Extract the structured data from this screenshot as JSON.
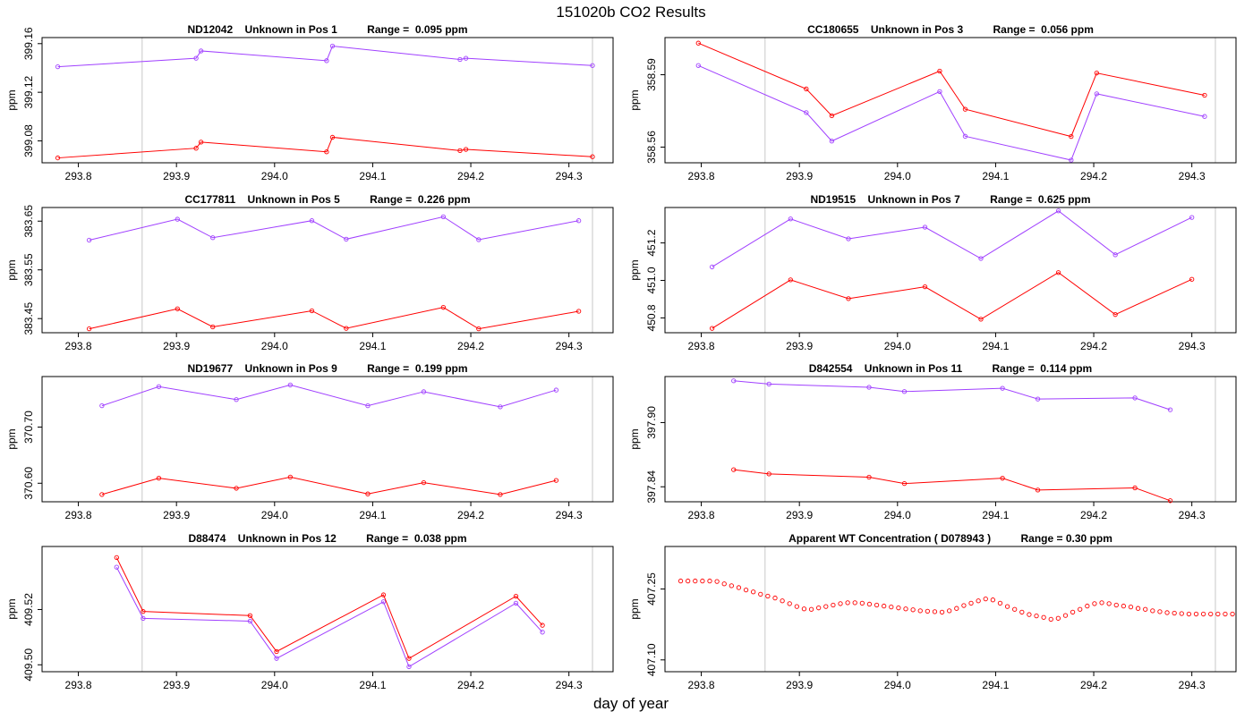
{
  "page": {
    "title": "151020b  CO2 Results",
    "xlabel": "day of year"
  },
  "colors": {
    "purple": "#a040ff",
    "red": "#ff0000",
    "vline": "#c8c8c8"
  },
  "chart_data": [
    {
      "type": "line",
      "title": "ND12042    Unknown in Pos 1          Range =  0.095 ppm",
      "ylabel": "ppm",
      "xlim": [
        293.763,
        294.345
      ],
      "ylim": [
        399.062,
        399.165
      ],
      "xticks": [
        "293.8",
        "293.9",
        "294.0",
        "294.1",
        "294.2",
        "294.3"
      ],
      "yticks": [
        "399.08",
        "399.12",
        "399.16"
      ],
      "vlines": [
        293.865,
        294.324
      ],
      "series": [
        {
          "name": "purple",
          "color": "#a040ff",
          "x": [
            293.779,
            293.92,
            293.925,
            294.053,
            294.059,
            294.189,
            294.195,
            294.324
          ],
          "y": [
            399.141,
            399.148,
            399.154,
            399.146,
            399.158,
            399.147,
            399.148,
            399.142
          ]
        },
        {
          "name": "red",
          "color": "#ff0000",
          "x": [
            293.779,
            293.92,
            293.925,
            294.053,
            294.059,
            294.189,
            294.195,
            294.324
          ],
          "y": [
            399.066,
            399.074,
            399.079,
            399.071,
            399.083,
            399.072,
            399.073,
            399.067
          ]
        }
      ]
    },
    {
      "type": "line",
      "title": "CC180655    Unknown in Pos 3          Range =  0.056 ppm",
      "ylabel": "ppm",
      "xlim": [
        293.763,
        294.345
      ],
      "ylim": [
        358.5535,
        358.6054
      ],
      "xticks": [
        "293.8",
        "293.9",
        "294.0",
        "294.1",
        "294.2",
        "294.3"
      ],
      "yticks": [
        "358.56",
        "358.59"
      ],
      "vlines": [
        293.865,
        294.324
      ],
      "series": [
        {
          "name": "purple",
          "color": "#a040ff",
          "x": [
            293.797,
            293.907,
            293.933,
            294.043,
            294.069,
            294.177,
            294.203,
            294.313
          ],
          "y": [
            358.5938,
            358.5743,
            358.5625,
            358.583,
            358.5645,
            358.5546,
            358.5821,
            358.5727
          ]
        },
        {
          "name": "red",
          "color": "#ff0000",
          "x": [
            293.797,
            293.907,
            293.933,
            294.043,
            294.069,
            294.177,
            294.203,
            294.313
          ],
          "y": [
            358.6031,
            358.5841,
            358.573,
            358.5915,
            358.5757,
            358.5644,
            358.5907,
            358.5815
          ]
        }
      ]
    },
    {
      "type": "line",
      "title": "CC177811    Unknown in Pos 5          Range =  0.226 ppm",
      "ylabel": "ppm",
      "xlim": [
        293.763,
        294.345
      ],
      "ylim": [
        383.421,
        383.678
      ],
      "xticks": [
        "293.8",
        "293.9",
        "294.0",
        "294.1",
        "294.2",
        "294.3"
      ],
      "yticks": [
        "383.45",
        "383.55",
        "383.65"
      ],
      "vlines": [
        293.865,
        294.324
      ],
      "series": [
        {
          "name": "purple",
          "color": "#a040ff",
          "x": [
            293.811,
            293.901,
            293.937,
            294.038,
            294.073,
            294.172,
            294.208,
            294.31
          ],
          "y": [
            383.611,
            383.654,
            383.616,
            383.651,
            383.613,
            383.659,
            383.612,
            383.651
          ]
        },
        {
          "name": "red",
          "color": "#ff0000",
          "x": [
            293.811,
            293.901,
            293.937,
            294.038,
            294.073,
            294.172,
            294.208,
            294.31
          ],
          "y": [
            383.429,
            383.47,
            383.433,
            383.466,
            383.43,
            383.473,
            383.429,
            383.465
          ]
        }
      ]
    },
    {
      "type": "line",
      "title": "ND19515    Unknown in Pos 7          Range =  0.625 ppm",
      "ylabel": "ppm",
      "xlim": [
        293.763,
        294.345
      ],
      "ylim": [
        450.721,
        451.389
      ],
      "xticks": [
        "293.8",
        "293.9",
        "294.0",
        "294.1",
        "294.2",
        "294.3"
      ],
      "yticks": [
        "450.8",
        "451.0",
        "451.2"
      ],
      "vlines": [
        293.865,
        294.324
      ],
      "series": [
        {
          "name": "purple",
          "color": "#a040ff",
          "x": [
            293.811,
            293.891,
            293.95,
            294.028,
            294.085,
            294.164,
            294.222,
            294.3
          ],
          "y": [
            451.072,
            451.328,
            451.222,
            451.284,
            451.117,
            451.371,
            451.137,
            451.336
          ]
        },
        {
          "name": "red",
          "color": "#ff0000",
          "x": [
            293.811,
            293.891,
            293.95,
            294.028,
            294.085,
            294.164,
            294.222,
            294.3
          ],
          "y": [
            450.744,
            451.003,
            450.903,
            450.966,
            450.793,
            451.042,
            450.818,
            451.006
          ]
        }
      ]
    },
    {
      "type": "line",
      "title": "ND19677    Unknown in Pos 9          Range =  0.199 ppm",
      "ylabel": "ppm",
      "xlim": [
        293.763,
        294.345
      ],
      "ylim": [
        370.567,
        370.79
      ],
      "xticks": [
        "293.8",
        "293.9",
        "294.0",
        "294.1",
        "294.2",
        "294.3"
      ],
      "yticks": [
        "370.60",
        "370.70"
      ],
      "vlines": [
        293.865,
        294.324
      ],
      "series": [
        {
          "name": "purple",
          "color": "#a040ff",
          "x": [
            293.824,
            293.882,
            293.961,
            294.016,
            294.095,
            294.152,
            294.23,
            294.287
          ],
          "y": [
            370.738,
            370.772,
            370.749,
            370.775,
            370.738,
            370.763,
            370.736,
            370.766
          ]
        },
        {
          "name": "red",
          "color": "#ff0000",
          "x": [
            293.824,
            293.882,
            293.961,
            294.016,
            294.095,
            294.152,
            294.23,
            294.287
          ],
          "y": [
            370.58,
            370.609,
            370.591,
            370.611,
            370.581,
            370.601,
            370.58,
            370.605
          ]
        }
      ]
    },
    {
      "type": "line",
      "title": "D842554    Unknown in Pos 11          Range =  0.114 ppm",
      "ylabel": "ppm",
      "xlim": [
        293.763,
        294.345
      ],
      "ylim": [
        397.826,
        397.943
      ],
      "xticks": [
        "293.8",
        "293.9",
        "294.0",
        "294.1",
        "294.2",
        "294.3"
      ],
      "yticks": [
        "397.84",
        "397.90"
      ],
      "vlines": [
        293.865,
        294.324
      ],
      "series": [
        {
          "name": "purple",
          "color": "#a040ff",
          "x": [
            293.833,
            293.869,
            293.971,
            294.007,
            294.107,
            294.143,
            294.242,
            294.278
          ],
          "y": [
            397.939,
            397.936,
            397.933,
            397.929,
            397.932,
            397.922,
            397.923,
            397.912
          ]
        },
        {
          "name": "red",
          "color": "#ff0000",
          "x": [
            293.833,
            293.869,
            293.971,
            294.007,
            294.107,
            294.143,
            294.242,
            294.278
          ],
          "y": [
            397.856,
            397.852,
            397.849,
            397.843,
            397.848,
            397.837,
            397.839,
            397.827
          ]
        }
      ]
    },
    {
      "type": "line",
      "title": "D88474    Unknown in Pos 12          Range =  0.038 ppm",
      "ylabel": "ppm",
      "xlim": [
        293.763,
        294.345
      ],
      "ylim": [
        409.4975,
        409.5428
      ],
      "xticks": [
        "293.8",
        "293.9",
        "294.0",
        "294.1",
        "294.2",
        "294.3"
      ],
      "yticks": [
        "409.50",
        "409.52"
      ],
      "vlines": [
        293.865,
        294.324
      ],
      "series": [
        {
          "name": "purple",
          "color": "#a040ff",
          "x": [
            293.839,
            293.866,
            293.975,
            294.002,
            294.111,
            294.137,
            294.246,
            294.273
          ],
          "y": [
            409.5353,
            409.5168,
            409.5158,
            409.5023,
            409.5228,
            409.4993,
            409.5223,
            409.5118
          ]
        },
        {
          "name": "red",
          "color": "#ff0000",
          "x": [
            293.839,
            293.866,
            293.975,
            294.002,
            294.111,
            294.137,
            294.246,
            294.273
          ],
          "y": [
            409.5388,
            409.5193,
            409.5178,
            409.5048,
            409.5253,
            409.5023,
            409.5248,
            409.5143
          ]
        }
      ]
    },
    {
      "type": "scatter",
      "title": "Apparent WT Concentration ( D078943 )          Range = 0.30 ppm",
      "ylabel": "ppm",
      "xlim": [
        293.763,
        294.345
      ],
      "ylim": [
        407.075,
        407.34
      ],
      "xticks": [
        "293.8",
        "293.9",
        "294.0",
        "294.1",
        "294.2",
        "294.3"
      ],
      "yticks": [
        "407.10",
        "407.25"
      ],
      "vlines": [
        293.865,
        294.324
      ],
      "series": [
        {
          "name": "WT",
          "color": "#ff0000",
          "x_start": 293.779,
          "x_step": 0.0074,
          "y": [
            407.267,
            407.267,
            407.267,
            407.267,
            407.267,
            407.266,
            407.261,
            407.257,
            407.253,
            407.248,
            407.244,
            407.239,
            407.235,
            407.231,
            407.225,
            407.219,
            407.213,
            407.208,
            407.207,
            407.21,
            407.213,
            407.216,
            407.219,
            407.221,
            407.221,
            407.22,
            407.218,
            407.216,
            407.214,
            407.212,
            407.21,
            407.208,
            407.206,
            407.204,
            407.203,
            407.202,
            407.201,
            407.204,
            407.209,
            407.215,
            407.22,
            407.225,
            407.229,
            407.227,
            407.22,
            407.213,
            407.207,
            407.201,
            407.196,
            407.193,
            407.19,
            407.186,
            407.188,
            407.194,
            407.201,
            407.207,
            407.214,
            407.219,
            407.221,
            407.219,
            407.216,
            407.214,
            407.212,
            407.209,
            407.207,
            407.204,
            407.202,
            407.2,
            407.199,
            407.198,
            407.197,
            407.197,
            407.197,
            407.197,
            407.197,
            407.197,
            407.197
          ]
        }
      ]
    }
  ]
}
